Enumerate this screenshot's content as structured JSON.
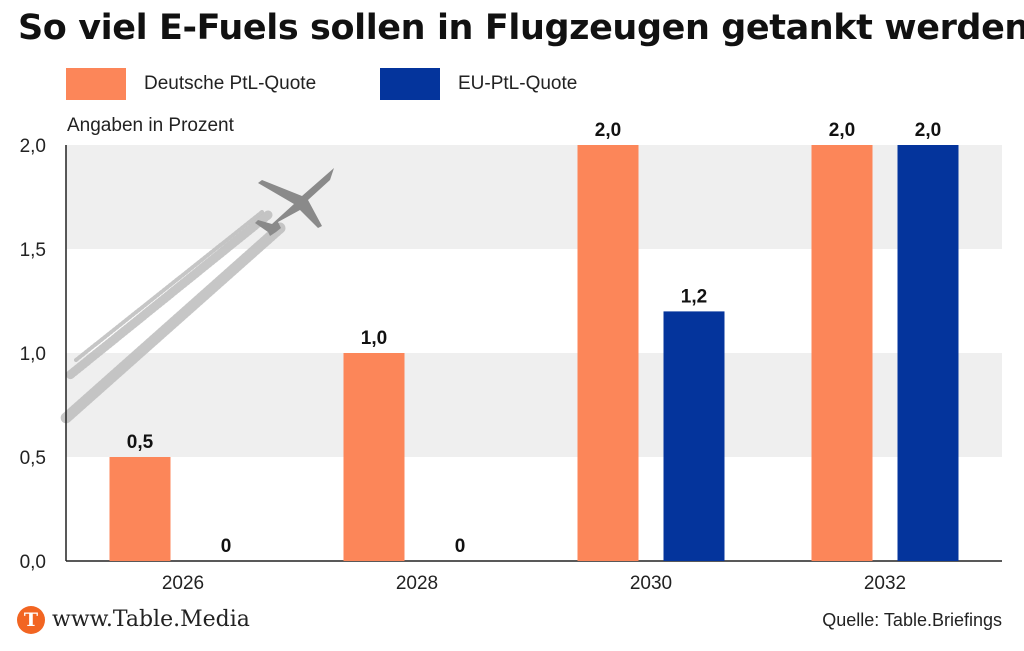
{
  "colors": {
    "deutsche": "#fc8659",
    "eu": "#04349c",
    "band": "#efefef",
    "axis": "#222222",
    "logo": "#f26522"
  },
  "header": {
    "title": "So viel E-Fuels sollen in Flugzeugen getankt werden"
  },
  "footer": {
    "logo_letter": "T",
    "site": "www.Table.Media",
    "source": "Quelle: Table.Briefings"
  },
  "decor": {
    "image_icon": "airplane-contrail-icon"
  },
  "chart_data": {
    "type": "bar",
    "unit_label": "Angaben in Prozent",
    "categories": [
      "2026",
      "2028",
      "2030",
      "2032"
    ],
    "series": [
      {
        "name": "Deutsche PtL-Quote",
        "values": [
          0.5,
          1.0,
          2.0,
          2.0
        ],
        "labels": [
          "0,5",
          "1,0",
          "2,0",
          "2,0"
        ]
      },
      {
        "name": "EU-PtL-Quote",
        "values": [
          0,
          0,
          1.2,
          2.0
        ],
        "labels": [
          "0",
          "0",
          "1,2",
          "2,0"
        ]
      }
    ],
    "ylim": [
      0,
      2.0
    ],
    "yticks": [
      0,
      0.5,
      1.0,
      1.5,
      2.0
    ],
    "ytick_labels": [
      "0,0",
      "0,5",
      "1,0",
      "1,5",
      "2,0"
    ],
    "grid": "alternating bands",
    "legend_position": "top-left"
  }
}
